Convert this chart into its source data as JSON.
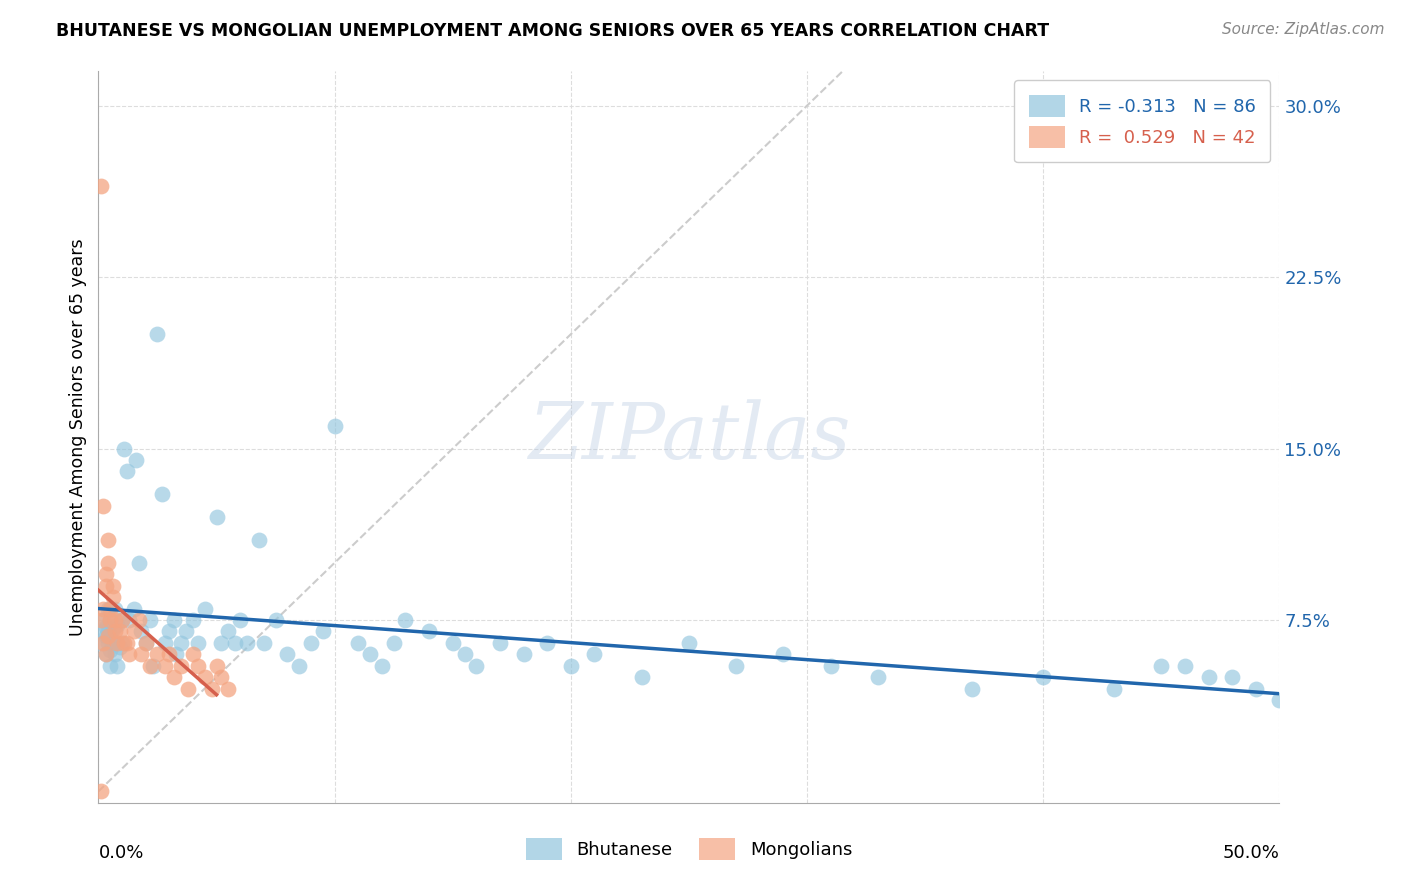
{
  "title": "BHUTANESE VS MONGOLIAN UNEMPLOYMENT AMONG SENIORS OVER 65 YEARS CORRELATION CHART",
  "source": "Source: ZipAtlas.com",
  "ylabel": "Unemployment Among Seniors over 65 years",
  "xlim": [
    0.0,
    0.5
  ],
  "ylim": [
    -0.005,
    0.315
  ],
  "yticks_right": [
    0.075,
    0.15,
    0.225,
    0.3
  ],
  "ytick_labels_right": [
    "7.5%",
    "15.0%",
    "22.5%",
    "30.0%"
  ],
  "legend_label1": "R = -0.313   N = 86",
  "legend_label2": "R =  0.529   N = 42",
  "legend_group1": "Bhutanese",
  "legend_group2": "Mongolians",
  "blue_color": "#92c5de",
  "blue_line_color": "#2166ac",
  "pink_color": "#f4a582",
  "pink_line_color": "#d6604d",
  "bhutanese_x": [
    0.001,
    0.002,
    0.002,
    0.003,
    0.003,
    0.003,
    0.004,
    0.004,
    0.004,
    0.005,
    0.005,
    0.005,
    0.005,
    0.006,
    0.006,
    0.007,
    0.007,
    0.008,
    0.008,
    0.009,
    0.01,
    0.01,
    0.011,
    0.012,
    0.013,
    0.015,
    0.016,
    0.017,
    0.018,
    0.02,
    0.022,
    0.023,
    0.025,
    0.027,
    0.028,
    0.03,
    0.032,
    0.033,
    0.035,
    0.037,
    0.04,
    0.042,
    0.045,
    0.05,
    0.052,
    0.055,
    0.058,
    0.06,
    0.063,
    0.068,
    0.07,
    0.075,
    0.08,
    0.085,
    0.09,
    0.095,
    0.1,
    0.11,
    0.115,
    0.12,
    0.125,
    0.13,
    0.14,
    0.15,
    0.155,
    0.16,
    0.17,
    0.18,
    0.19,
    0.2,
    0.21,
    0.23,
    0.25,
    0.27,
    0.29,
    0.31,
    0.33,
    0.37,
    0.4,
    0.43,
    0.45,
    0.47,
    0.49,
    0.5,
    0.48,
    0.46
  ],
  "bhutanese_y": [
    0.065,
    0.07,
    0.075,
    0.068,
    0.072,
    0.06,
    0.065,
    0.07,
    0.08,
    0.062,
    0.068,
    0.075,
    0.055,
    0.065,
    0.071,
    0.06,
    0.08,
    0.073,
    0.055,
    0.063,
    0.075,
    0.065,
    0.15,
    0.14,
    0.075,
    0.08,
    0.145,
    0.1,
    0.07,
    0.065,
    0.075,
    0.055,
    0.2,
    0.13,
    0.065,
    0.07,
    0.075,
    0.06,
    0.065,
    0.07,
    0.075,
    0.065,
    0.08,
    0.12,
    0.065,
    0.07,
    0.065,
    0.075,
    0.065,
    0.11,
    0.065,
    0.075,
    0.06,
    0.055,
    0.065,
    0.07,
    0.16,
    0.065,
    0.06,
    0.055,
    0.065,
    0.075,
    0.07,
    0.065,
    0.06,
    0.055,
    0.065,
    0.06,
    0.065,
    0.055,
    0.06,
    0.05,
    0.065,
    0.055,
    0.06,
    0.055,
    0.05,
    0.045,
    0.05,
    0.045,
    0.055,
    0.05,
    0.045,
    0.04,
    0.05,
    0.055
  ],
  "mongolian_x": [
    0.001,
    0.001,
    0.001,
    0.002,
    0.002,
    0.002,
    0.003,
    0.003,
    0.003,
    0.004,
    0.004,
    0.004,
    0.005,
    0.005,
    0.006,
    0.006,
    0.007,
    0.007,
    0.008,
    0.009,
    0.01,
    0.011,
    0.012,
    0.013,
    0.015,
    0.017,
    0.018,
    0.02,
    0.022,
    0.025,
    0.028,
    0.03,
    0.032,
    0.035,
    0.038,
    0.04,
    0.042,
    0.045,
    0.048,
    0.05,
    0.052,
    0.055
  ],
  "mongolian_y": [
    0.265,
    0.075,
    0.0,
    0.08,
    0.125,
    0.065,
    0.095,
    0.09,
    0.06,
    0.1,
    0.11,
    0.068,
    0.075,
    0.08,
    0.09,
    0.085,
    0.07,
    0.075,
    0.065,
    0.07,
    0.075,
    0.065,
    0.065,
    0.06,
    0.07,
    0.075,
    0.06,
    0.065,
    0.055,
    0.06,
    0.055,
    0.06,
    0.05,
    0.055,
    0.045,
    0.06,
    0.055,
    0.05,
    0.045,
    0.055,
    0.05,
    0.045
  ]
}
